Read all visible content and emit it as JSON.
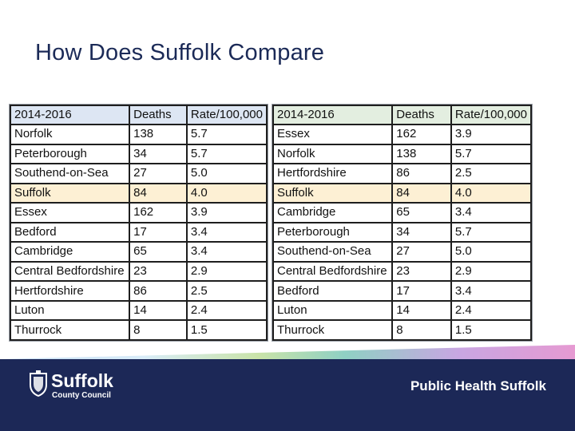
{
  "slide": {
    "title": "How Does Suffolk Compare"
  },
  "tables": {
    "left": {
      "headers": [
        "2014-2016",
        "Deaths",
        "Rate/100,000"
      ],
      "rows": [
        [
          "Norfolk",
          "138",
          "5.7"
        ],
        [
          "Peterborough",
          "34",
          "5.7"
        ],
        [
          "Southend-on-Sea",
          "27",
          "5.0"
        ],
        [
          "Suffolk",
          "84",
          "4.0"
        ],
        [
          "Essex",
          "162",
          "3.9"
        ],
        [
          "Bedford",
          "17",
          "3.4"
        ],
        [
          "Cambridge",
          "65",
          "3.4"
        ],
        [
          "Central Bedfordshire",
          "23",
          "2.9"
        ],
        [
          "Hertfordshire",
          "86",
          "2.5"
        ],
        [
          "Luton",
          "14",
          "2.4"
        ],
        [
          "Thurrock",
          "8",
          "1.5"
        ]
      ]
    },
    "right": {
      "headers": [
        "2014-2016",
        "Deaths",
        "Rate/100,000"
      ],
      "rows": [
        [
          "Essex",
          "162",
          "3.9"
        ],
        [
          "Norfolk",
          "138",
          "5.7"
        ],
        [
          "Hertfordshire",
          "86",
          "2.5"
        ],
        [
          "Suffolk",
          "84",
          "4.0"
        ],
        [
          "Cambridge",
          "65",
          "3.4"
        ],
        [
          "Peterborough",
          "34",
          "5.7"
        ],
        [
          "Southend-on-Sea",
          "27",
          "5.0"
        ],
        [
          "Central Bedfordshire",
          "23",
          "2.9"
        ],
        [
          "Bedford",
          "17",
          "3.4"
        ],
        [
          "Luton",
          "14",
          "2.4"
        ],
        [
          "Thurrock",
          "8",
          "1.5"
        ]
      ]
    },
    "highlight_row_name": "Suffolk"
  },
  "footer": {
    "logo_name": "Suffolk",
    "logo_subtitle": "County Council",
    "brand": "Public Health Suffolk",
    "logo_icon": "crest-icon"
  },
  "colors": {
    "navy": "#1c2857",
    "title": "#1b2a57",
    "highlight": "#fdf0d4",
    "header_left": "#dde6f3",
    "header_right": "#e3eee0"
  }
}
